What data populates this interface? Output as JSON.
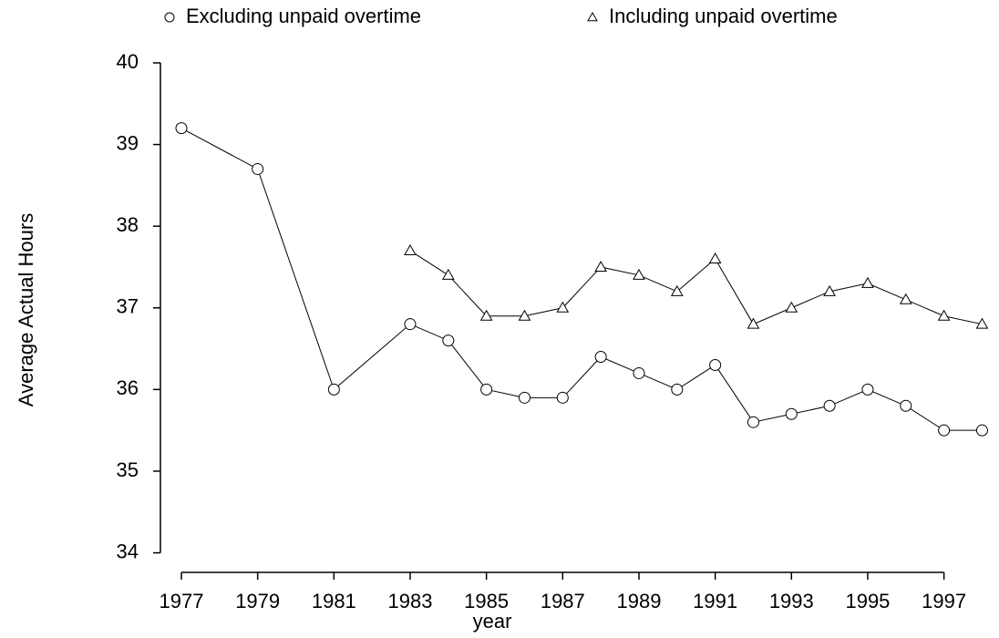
{
  "chart_data": {
    "type": "line",
    "x_label": "year",
    "y_label": "Average Actual Hours",
    "x": [
      1977,
      1979,
      1981,
      1983,
      1984,
      1985,
      1986,
      1987,
      1988,
      1989,
      1990,
      1991,
      1992,
      1993,
      1994,
      1995,
      1996,
      1997,
      1998
    ],
    "series": [
      {
        "name": "Excluding unpaid overtime",
        "marker": "circle",
        "color": "#000000",
        "values": [
          39.2,
          38.7,
          36.0,
          36.8,
          36.6,
          36.0,
          35.9,
          35.9,
          36.4,
          36.2,
          36.0,
          36.3,
          35.6,
          35.7,
          35.8,
          36.0,
          35.8,
          35.5,
          35.5
        ]
      },
      {
        "name": "Including unpaid overtime",
        "marker": "triangle",
        "color": "#000000",
        "values": [
          null,
          null,
          null,
          37.7,
          37.4,
          36.9,
          36.9,
          37.0,
          37.5,
          37.4,
          37.2,
          37.6,
          36.8,
          37.0,
          37.2,
          37.3,
          37.1,
          36.9,
          36.8
        ]
      }
    ],
    "xlim": [
      1976.45,
      1998.3
    ],
    "ylim": [
      33.85,
      40.1
    ],
    "xticks": [
      1977,
      1979,
      1981,
      1983,
      1985,
      1987,
      1989,
      1991,
      1993,
      1995,
      1997
    ],
    "yticks": [
      34,
      35,
      36,
      37,
      38,
      39,
      40
    ],
    "legend": "top",
    "grid": false
  }
}
